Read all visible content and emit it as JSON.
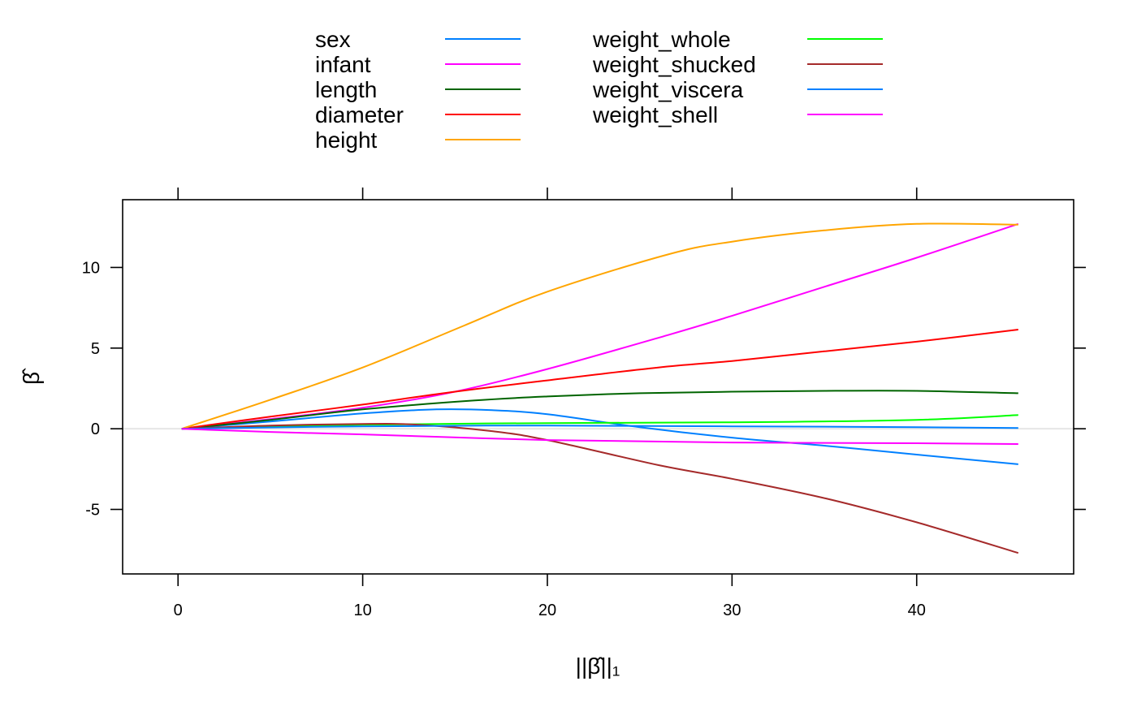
{
  "chart_data": {
    "type": "line",
    "xlabel": "||β̂||₁",
    "ylabel": "β̂",
    "xlim": [
      -3,
      48.5
    ],
    "ylim": [
      -9,
      14.2
    ],
    "xticks": [
      0,
      10,
      20,
      30,
      40
    ],
    "yticks": [
      -5,
      0,
      5,
      10
    ],
    "grid": false,
    "legend_position": "top",
    "series": [
      {
        "name": "sex",
        "color": "#0080ff",
        "x": [
          0.2,
          5,
          10,
          14,
          17,
          20,
          25,
          30,
          35,
          40,
          45.5
        ],
        "y": [
          0,
          0.45,
          0.95,
          1.2,
          1.15,
          0.9,
          0.1,
          -0.55,
          -1.05,
          -1.6,
          -2.2
        ]
      },
      {
        "name": "infant",
        "color": "#ff00ff",
        "x": [
          0.2,
          5,
          10,
          15,
          20,
          26.5,
          30,
          35,
          40,
          45.5
        ],
        "y": [
          0,
          0.6,
          1.3,
          2.3,
          3.7,
          5.8,
          7.0,
          8.8,
          10.6,
          12.7
        ]
      },
      {
        "name": "length",
        "color": "#006400",
        "x": [
          0.2,
          5,
          10,
          16,
          20,
          25,
          30,
          35,
          40,
          45.5
        ],
        "y": [
          0,
          0.55,
          1.2,
          1.75,
          2.0,
          2.2,
          2.3,
          2.35,
          2.35,
          2.2
        ]
      },
      {
        "name": "diameter",
        "color": "#ff0000",
        "x": [
          0.2,
          5,
          10,
          15,
          20,
          26,
          30,
          35,
          40,
          45.5
        ],
        "y": [
          0,
          0.75,
          1.5,
          2.3,
          3.0,
          3.8,
          4.2,
          4.8,
          5.4,
          6.15
        ]
      },
      {
        "name": "height",
        "color": "#ffa500",
        "x": [
          0.2,
          5,
          10,
          15.5,
          20,
          26.5,
          30,
          35,
          40,
          45.5
        ],
        "y": [
          0,
          1.8,
          3.8,
          6.4,
          8.5,
          10.8,
          11.6,
          12.3,
          12.7,
          12.65
        ]
      },
      {
        "name": "weight_whole",
        "color": "#00ff00",
        "x": [
          0.2,
          10,
          20,
          30,
          40,
          45.5
        ],
        "y": [
          0,
          0.25,
          0.35,
          0.4,
          0.55,
          0.85
        ]
      },
      {
        "name": "weight_shucked",
        "color": "#a52a2a",
        "x": [
          0.2,
          5,
          10,
          13,
          17,
          20,
          26,
          30,
          35,
          40,
          45.5
        ],
        "y": [
          0,
          0.2,
          0.3,
          0.25,
          -0.15,
          -0.7,
          -2.25,
          -3.1,
          -4.3,
          -5.8,
          -7.7
        ]
      },
      {
        "name": "weight_viscera",
        "color": "#0080ff",
        "x": [
          0.2,
          10,
          20,
          30,
          40,
          45.5
        ],
        "y": [
          0,
          0.15,
          0.2,
          0.15,
          0.1,
          0.05
        ]
      },
      {
        "name": "weight_shell",
        "color": "#ff00ff",
        "x": [
          0.2,
          5,
          10,
          20,
          30,
          40,
          45.5
        ],
        "y": [
          0,
          -0.2,
          -0.35,
          -0.7,
          -0.85,
          -0.9,
          -0.95
        ]
      }
    ]
  }
}
